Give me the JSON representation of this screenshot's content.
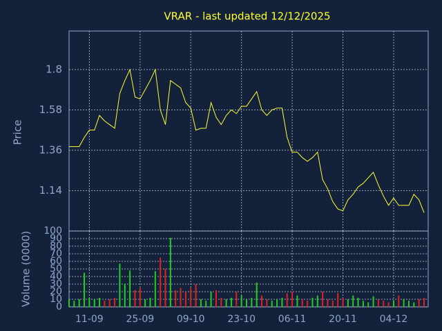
{
  "chart_data": {
    "type": "stock",
    "title": "VRAR - last updated 12/12/2025",
    "categories": [
      null,
      null,
      null,
      null,
      "11-09",
      null,
      null,
      null,
      null,
      null,
      null,
      null,
      null,
      null,
      "25-09",
      null,
      null,
      null,
      null,
      null,
      null,
      null,
      null,
      null,
      "09-10",
      null,
      null,
      null,
      null,
      null,
      null,
      null,
      null,
      null,
      "23-10",
      null,
      null,
      null,
      null,
      null,
      null,
      null,
      null,
      null,
      "06-11",
      null,
      null,
      null,
      null,
      null,
      null,
      null,
      null,
      null,
      "20-11",
      null,
      null,
      null,
      null,
      null,
      null,
      null,
      null,
      null,
      "04-12",
      null,
      null,
      null,
      null,
      null,
      null
    ],
    "price": {
      "ylabel": "Price",
      "color": "#ffff33",
      "values": [
        1.38,
        1.38,
        1.38,
        1.43,
        1.47,
        1.47,
        1.55,
        1.52,
        1.5,
        1.48,
        1.67,
        1.74,
        1.8,
        1.65,
        1.64,
        1.69,
        1.74,
        1.8,
        1.58,
        1.5,
        1.74,
        1.72,
        1.7,
        1.62,
        1.59,
        1.47,
        1.48,
        1.48,
        1.62,
        1.54,
        1.5,
        1.55,
        1.58,
        1.56,
        1.6,
        1.6,
        1.64,
        1.68,
        1.58,
        1.55,
        1.58,
        1.59,
        1.59,
        1.43,
        1.35,
        1.35,
        1.32,
        1.3,
        1.32,
        1.35,
        1.2,
        1.15,
        1.08,
        1.04,
        1.03,
        1.09,
        1.12,
        1.16,
        1.18,
        1.21,
        1.24,
        1.17,
        1.11,
        1.06,
        1.1,
        1.06,
        1.06,
        1.06,
        1.12,
        1.09,
        1.02
      ],
      "ylim": [
        0.92,
        2.01
      ],
      "yticks": [
        1.14,
        1.36,
        1.58,
        1.8
      ]
    },
    "volume": {
      "ylabel": "Volume (0000)",
      "up_color": "#22cc22",
      "down_color": "#dd2222",
      "values": [
        10,
        8,
        10,
        45,
        12,
        10,
        12,
        8,
        10,
        12,
        57,
        30,
        48,
        22,
        25,
        10,
        12,
        47,
        65,
        50,
        91,
        22,
        25,
        20,
        25,
        30,
        10,
        8,
        20,
        22,
        12,
        10,
        12,
        20,
        15,
        10,
        12,
        32,
        15,
        10,
        8,
        10,
        12,
        18,
        20,
        15,
        10,
        8,
        12,
        15,
        20,
        10,
        8,
        18,
        12,
        10,
        15,
        12,
        8,
        6,
        14,
        10,
        8,
        6,
        8,
        15,
        10,
        8,
        6,
        10,
        12
      ],
      "ylim": [
        0,
        100
      ],
      "yticks": [
        0,
        10,
        20,
        30,
        40,
        50,
        60,
        70,
        80,
        90,
        100
      ]
    },
    "grid": true
  }
}
